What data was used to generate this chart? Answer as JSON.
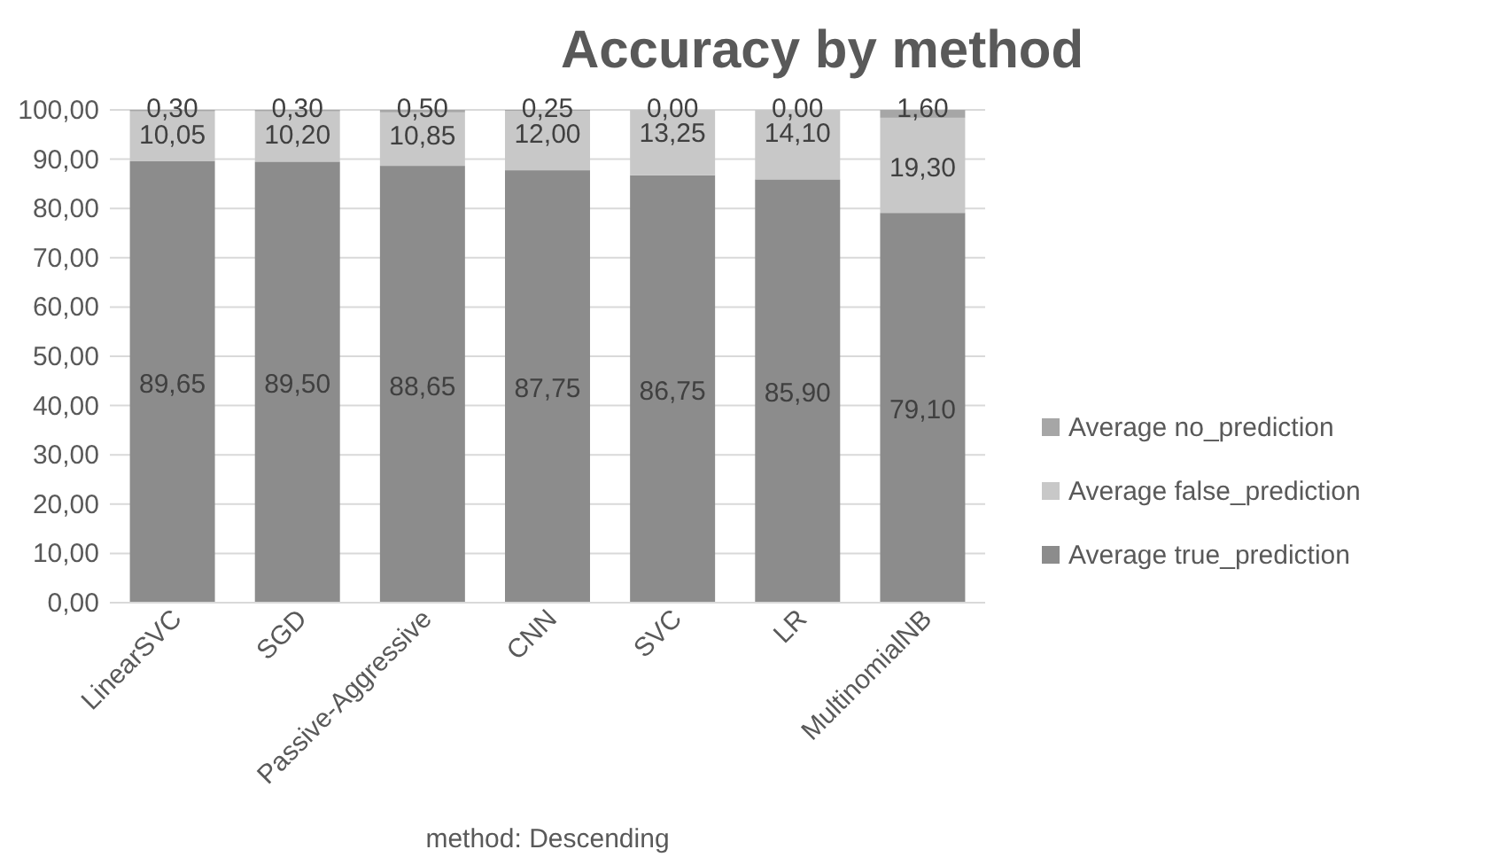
{
  "chart_data": {
    "type": "bar",
    "title": "Accuracy by method",
    "xlabel": "method: Descending",
    "stacked": true,
    "categories": [
      "LinearSVC",
      "SGD",
      "Passive-Aggressive",
      "CNN",
      "SVC",
      "LR",
      "MultinomialNB"
    ],
    "series": [
      {
        "name": "Average true_prediction",
        "color": "#8c8c8c",
        "values": [
          89.65,
          89.5,
          88.65,
          87.75,
          86.75,
          85.9,
          79.1
        ],
        "value_labels": [
          "89,65",
          "89,50",
          "88,65",
          "87,75",
          "86,75",
          "85,90",
          "79,10"
        ]
      },
      {
        "name": "Average false_prediction",
        "color": "#c8c8c8",
        "values": [
          10.05,
          10.2,
          10.85,
          12.0,
          13.25,
          14.1,
          19.3
        ],
        "value_labels": [
          "10,05",
          "10,20",
          "10,85",
          "12,00",
          "13,25",
          "14,10",
          "19,30"
        ]
      },
      {
        "name": "Average no_prediction",
        "color": "#a6a6a6",
        "values": [
          0.3,
          0.3,
          0.5,
          0.25,
          0,
          0,
          1.6
        ],
        "value_labels": [
          "0,30",
          "0,30",
          "0,50",
          "0,25",
          "0,00",
          "0,00",
          "1,60"
        ]
      }
    ],
    "ylim": [
      0,
      100
    ],
    "yticks": [
      {
        "value": 0,
        "label": "0,00"
      },
      {
        "value": 10,
        "label": "10,00"
      },
      {
        "value": 20,
        "label": "20,00"
      },
      {
        "value": 30,
        "label": "30,00"
      },
      {
        "value": 40,
        "label": "40,00"
      },
      {
        "value": 50,
        "label": "50,00"
      },
      {
        "value": 60,
        "label": "60,00"
      },
      {
        "value": 70,
        "label": "70,00"
      },
      {
        "value": 80,
        "label": "80,00"
      },
      {
        "value": 90,
        "label": "90,00"
      },
      {
        "value": 100,
        "label": "100,00"
      }
    ],
    "grid": "y",
    "legend": "right"
  }
}
